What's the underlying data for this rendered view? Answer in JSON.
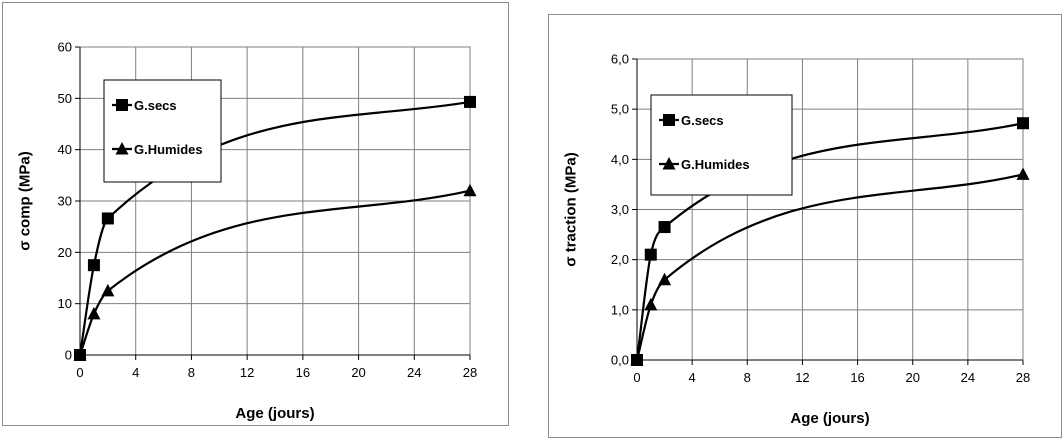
{
  "colors": {
    "grid": "#7f7f7f",
    "series": "#000000",
    "background": "#ffffff"
  },
  "chart_data": [
    {
      "type": "line",
      "title": "",
      "xlabel": "Age (jours)",
      "ylabel": "σ comp (MPa)",
      "xlim": [
        0,
        28
      ],
      "ylim": [
        0,
        60
      ],
      "xticks": [
        0,
        4,
        8,
        12,
        16,
        20,
        24,
        28
      ],
      "yticks": [
        0,
        10,
        20,
        30,
        40,
        50,
        60
      ],
      "ytick_labels": [
        "0",
        "10",
        "20",
        "30",
        "40",
        "50",
        "60"
      ],
      "grid": true,
      "legend": "left",
      "series": [
        {
          "name": "G.secs",
          "marker": "square",
          "x": [
            0,
            1,
            2,
            28
          ],
          "y": [
            0,
            17.5,
            26.6,
            49.3
          ]
        },
        {
          "name": "G.Humides",
          "marker": "triangle",
          "x": [
            0,
            1,
            2,
            28
          ],
          "y": [
            0,
            8,
            12.5,
            32
          ]
        }
      ]
    },
    {
      "type": "line",
      "title": "",
      "xlabel": "Age (jours)",
      "ylabel": "σ traction (MPa)",
      "xlim": [
        0,
        28
      ],
      "ylim": [
        0,
        6
      ],
      "xticks": [
        0,
        4,
        8,
        12,
        16,
        20,
        24,
        28
      ],
      "yticks": [
        0,
        1,
        2,
        3,
        4,
        5,
        6
      ],
      "ytick_labels": [
        "0,0",
        "1,0",
        "2,0",
        "3,0",
        "4,0",
        "5,0",
        "6,0"
      ],
      "grid": true,
      "legend": "left",
      "series": [
        {
          "name": "G.secs",
          "marker": "square",
          "x": [
            0,
            1,
            2,
            28
          ],
          "y": [
            0,
            2.1,
            2.65,
            4.72
          ]
        },
        {
          "name": "G.Humides",
          "marker": "triangle",
          "x": [
            0,
            1,
            2,
            28
          ],
          "y": [
            0,
            1.1,
            1.6,
            3.7
          ]
        }
      ]
    }
  ]
}
